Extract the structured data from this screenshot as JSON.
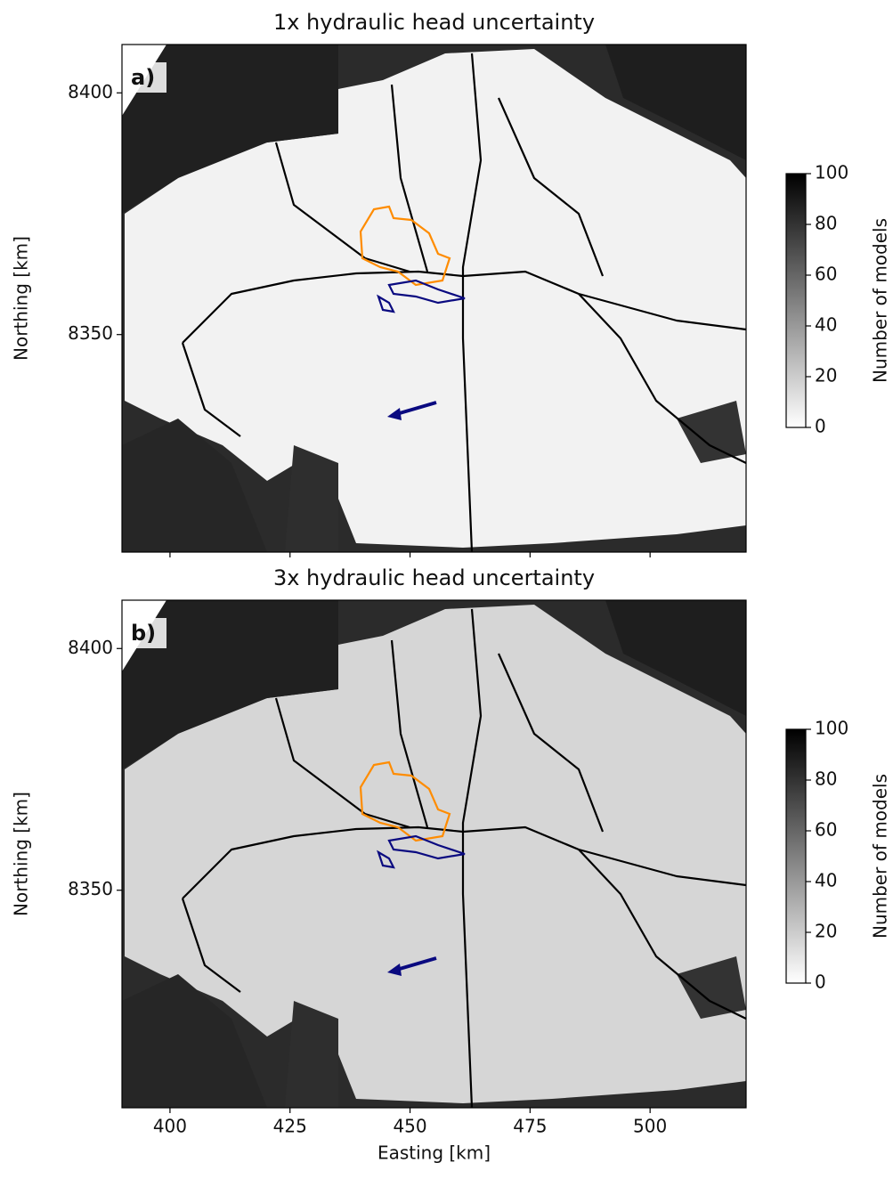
{
  "chart_data": [
    {
      "type": "image",
      "title": "1x hydraulic head uncertainty",
      "panel_label": "a)",
      "xlim": [
        390,
        520
      ],
      "ylim": [
        8305,
        8410
      ],
      "xticks": [
        400,
        425,
        450,
        475,
        500
      ],
      "yticks": [
        8350,
        8400
      ],
      "ylabel": "Northing [km]",
      "colorbar": {
        "label": "Number of models",
        "lim": [
          0,
          100
        ],
        "ticks": [
          0,
          20,
          40,
          60,
          80,
          100
        ],
        "colors": [
          "#ffffff",
          "#000000"
        ]
      }
    },
    {
      "type": "image",
      "title": "3x hydraulic head uncertainty",
      "panel_label": "b)",
      "xlim": [
        390,
        520
      ],
      "ylim": [
        8305,
        8410
      ],
      "xticks": [
        400,
        425,
        450,
        475,
        500
      ],
      "yticks": [
        8350,
        8400
      ],
      "xlabel": "Easting [km]",
      "ylabel": "Northing [km]",
      "colorbar": {
        "label": "Number of models",
        "lim": [
          0,
          100
        ],
        "ticks": [
          0,
          20,
          40,
          60,
          80,
          100
        ],
        "colors": [
          "#ffffff",
          "#000000"
        ]
      }
    }
  ]
}
